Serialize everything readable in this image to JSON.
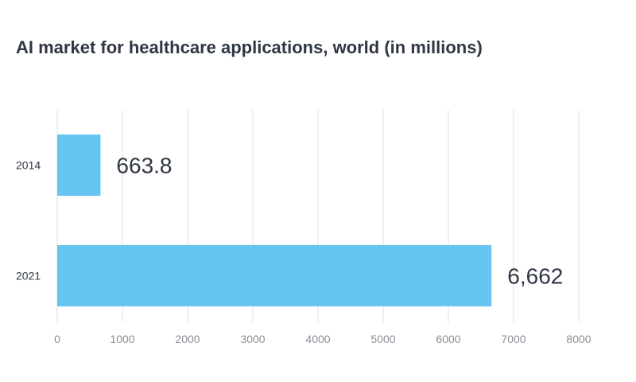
{
  "chart_data": {
    "type": "bar",
    "orientation": "horizontal",
    "title": "AI market for healthcare applications, world (in millions)",
    "categories": [
      "2014",
      "2021"
    ],
    "values": [
      663.8,
      6662
    ],
    "data_labels": [
      "663.8",
      "6,662"
    ],
    "x_ticks": [
      "0",
      "1000",
      "2000",
      "3000",
      "4000",
      "5000",
      "6000",
      "7000",
      "8000"
    ],
    "xlim": [
      0,
      8000
    ],
    "xlabel": "",
    "ylabel": "",
    "grid": true,
    "legend": "none",
    "bar_color": "#66c6f1"
  }
}
